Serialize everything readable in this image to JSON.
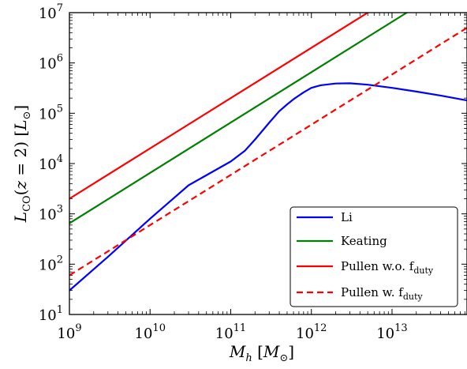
{
  "chart_data": {
    "type": "line",
    "xscale": "log",
    "yscale": "log",
    "xlim": [
      1000000000.0,
      85000000000000.0
    ],
    "ylim": [
      10,
      10000000.0
    ],
    "xlabel": "M_h [M_⊙]",
    "ylabel": "L_CO(z = 2) [L_⊙]",
    "x_ticks": [
      {
        "value": 1000000000.0,
        "base": "10",
        "exp": "9"
      },
      {
        "value": 10000000000.0,
        "base": "10",
        "exp": "10"
      },
      {
        "value": 100000000000.0,
        "base": "10",
        "exp": "11"
      },
      {
        "value": 1000000000000.0,
        "base": "10",
        "exp": "12"
      },
      {
        "value": 10000000000000.0,
        "base": "10",
        "exp": "13"
      }
    ],
    "y_ticks": [
      {
        "value": 10,
        "base": "10",
        "exp": "1"
      },
      {
        "value": 100.0,
        "base": "10",
        "exp": "2"
      },
      {
        "value": 1000.0,
        "base": "10",
        "exp": "3"
      },
      {
        "value": 10000.0,
        "base": "10",
        "exp": "4"
      },
      {
        "value": 100000.0,
        "base": "10",
        "exp": "5"
      },
      {
        "value": 1000000.0,
        "base": "10",
        "exp": "6"
      },
      {
        "value": 10000000.0,
        "base": "10",
        "exp": "7"
      }
    ],
    "grid": false,
    "legend_position": "bottom-right",
    "series": [
      {
        "name": "Li",
        "color": "#0000ff",
        "dash": "solid",
        "x": [
          1000000000.0,
          3000000000.0,
          10000000000.0,
          30000000000.0,
          100000000000.0,
          150000000000.0,
          200000000000.0,
          300000000000.0,
          400000000000.0,
          500000000000.0,
          600000000000.0,
          800000000000.0,
          1000000000000.0,
          1300000000000.0,
          2000000000000.0,
          3000000000000.0,
          5000000000000.0,
          10000000000000.0,
          20000000000000.0,
          40000000000000.0,
          85000000000000.0
        ],
        "y": [
          30,
          140,
          800,
          3700,
          11000,
          18000,
          30000,
          65000,
          110000,
          150000,
          190000,
          260000,
          320000,
          360000,
          390000,
          395000,
          370000,
          320000,
          270000,
          225000,
          180000
        ]
      },
      {
        "name": "Keating",
        "color": "#008000",
        "dash": "solid",
        "x": [
          1000000000.0,
          85000000000000.0
        ],
        "y": [
          650,
          56000000.0
        ]
      },
      {
        "name": "Pullen w.o. f_duty",
        "color": "#ff0000",
        "dash": "solid",
        "x": [
          1000000000.0,
          85000000000000.0
        ],
        "y": [
          2000,
          170000000.0
        ]
      },
      {
        "name": "Pullen w. f_duty",
        "color": "#ff0000",
        "dash": "dashed",
        "x": [
          1000000000.0,
          85000000000000.0
        ],
        "y": [
          60,
          5000000.0
        ]
      }
    ],
    "legend": [
      {
        "main": "Li",
        "sub": ""
      },
      {
        "main": "Keating",
        "sub": ""
      },
      {
        "main": "Pullen w.o. f",
        "sub": "duty"
      },
      {
        "main": "Pullen w. f",
        "sub": "duty"
      }
    ]
  }
}
